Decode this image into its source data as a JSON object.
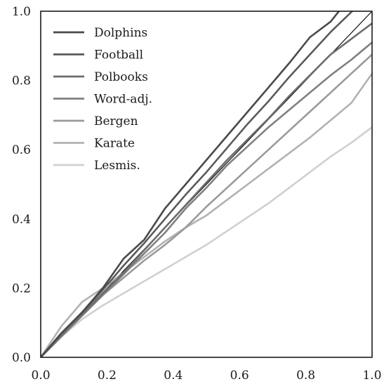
{
  "chart_data": {
    "type": "line",
    "title": "",
    "xlabel": "",
    "ylabel": "",
    "xlim": [
      0.0,
      1.0
    ],
    "ylim": [
      0.0,
      1.0
    ],
    "grid": false,
    "legend_position": "top-left",
    "x_ticks": [
      "0.0",
      "0.2",
      "0.4",
      "0.6",
      "0.8",
      "1.0"
    ],
    "y_ticks": [
      "0.0",
      "0.2",
      "0.4",
      "0.6",
      "0.8",
      "1.0"
    ],
    "reference_line": {
      "from": [
        0,
        0
      ],
      "to": [
        1,
        1
      ],
      "color": "#000000"
    },
    "series": [
      {
        "name": "Dolphins",
        "color": "#4a4a4a",
        "x": [
          0,
          0.0625,
          0.125,
          0.1875,
          0.25,
          0.3125,
          0.375,
          0.4375,
          0.5,
          0.5625,
          0.625,
          0.6875,
          0.75,
          0.8125,
          0.875,
          0.9
        ],
        "y": [
          0,
          0.07,
          0.13,
          0.2,
          0.285,
          0.34,
          0.43,
          0.5,
          0.57,
          0.64,
          0.71,
          0.78,
          0.85,
          0.925,
          0.97,
          1.0
        ]
      },
      {
        "name": "Football",
        "color": "#5a5a5a",
        "x": [
          0,
          0.0625,
          0.125,
          0.1875,
          0.25,
          0.3125,
          0.375,
          0.4375,
          0.5,
          0.5625,
          0.625,
          0.6875,
          0.75,
          0.8125,
          0.875,
          0.94
        ],
        "y": [
          0,
          0.07,
          0.13,
          0.195,
          0.265,
          0.33,
          0.4,
          0.47,
          0.535,
          0.605,
          0.675,
          0.74,
          0.81,
          0.875,
          0.94,
          1.0
        ]
      },
      {
        "name": "Polbooks",
        "color": "#6c6c6c",
        "x": [
          0,
          0.0625,
          0.125,
          0.1875,
          0.25,
          0.3125,
          0.375,
          0.4375,
          0.5,
          0.5625,
          0.625,
          0.6875,
          0.75,
          0.8125,
          0.875,
          0.9375,
          1.0
        ],
        "y": [
          0,
          0.065,
          0.125,
          0.185,
          0.245,
          0.31,
          0.375,
          0.44,
          0.505,
          0.57,
          0.63,
          0.69,
          0.755,
          0.815,
          0.875,
          0.92,
          0.965
        ]
      },
      {
        "name": "Word-adj.",
        "color": "#808080",
        "x": [
          0,
          0.0625,
          0.125,
          0.1875,
          0.25,
          0.3125,
          0.375,
          0.4375,
          0.5,
          0.5625,
          0.625,
          0.6875,
          0.75,
          0.8125,
          0.875,
          0.9375,
          1.0
        ],
        "y": [
          0,
          0.06,
          0.12,
          0.18,
          0.24,
          0.3,
          0.36,
          0.43,
          0.49,
          0.555,
          0.61,
          0.665,
          0.715,
          0.765,
          0.815,
          0.86,
          0.91
        ]
      },
      {
        "name": "Bergen",
        "color": "#9a9a9a",
        "x": [
          0,
          0.0625,
          0.125,
          0.1875,
          0.25,
          0.3125,
          0.375,
          0.4375,
          0.5,
          0.5625,
          0.625,
          0.6875,
          0.75,
          0.8125,
          0.875,
          0.9375,
          1.0
        ],
        "y": [
          0,
          0.065,
          0.125,
          0.18,
          0.23,
          0.28,
          0.325,
          0.375,
          0.435,
          0.49,
          0.545,
          0.6,
          0.655,
          0.71,
          0.765,
          0.82,
          0.875
        ]
      },
      {
        "name": "Karate",
        "color": "#b2b2b2",
        "x": [
          0,
          0.0625,
          0.125,
          0.1875,
          0.25,
          0.3125,
          0.375,
          0.4375,
          0.5,
          0.5625,
          0.625,
          0.6875,
          0.75,
          0.8125,
          0.875,
          0.9375,
          1.0
        ],
        "y": [
          0,
          0.09,
          0.16,
          0.2,
          0.245,
          0.29,
          0.335,
          0.375,
          0.41,
          0.455,
          0.5,
          0.545,
          0.59,
          0.635,
          0.685,
          0.735,
          0.82
        ]
      },
      {
        "name": "Lesmis.",
        "color": "#d0d0d0",
        "x": [
          0,
          0.0625,
          0.125,
          0.1875,
          0.25,
          0.3125,
          0.375,
          0.4375,
          0.5,
          0.5625,
          0.625,
          0.6875,
          0.75,
          0.8125,
          0.875,
          0.9375,
          1.0
        ],
        "y": [
          0,
          0.06,
          0.11,
          0.15,
          0.185,
          0.22,
          0.255,
          0.29,
          0.325,
          0.365,
          0.405,
          0.445,
          0.49,
          0.535,
          0.58,
          0.62,
          0.665
        ]
      }
    ]
  }
}
